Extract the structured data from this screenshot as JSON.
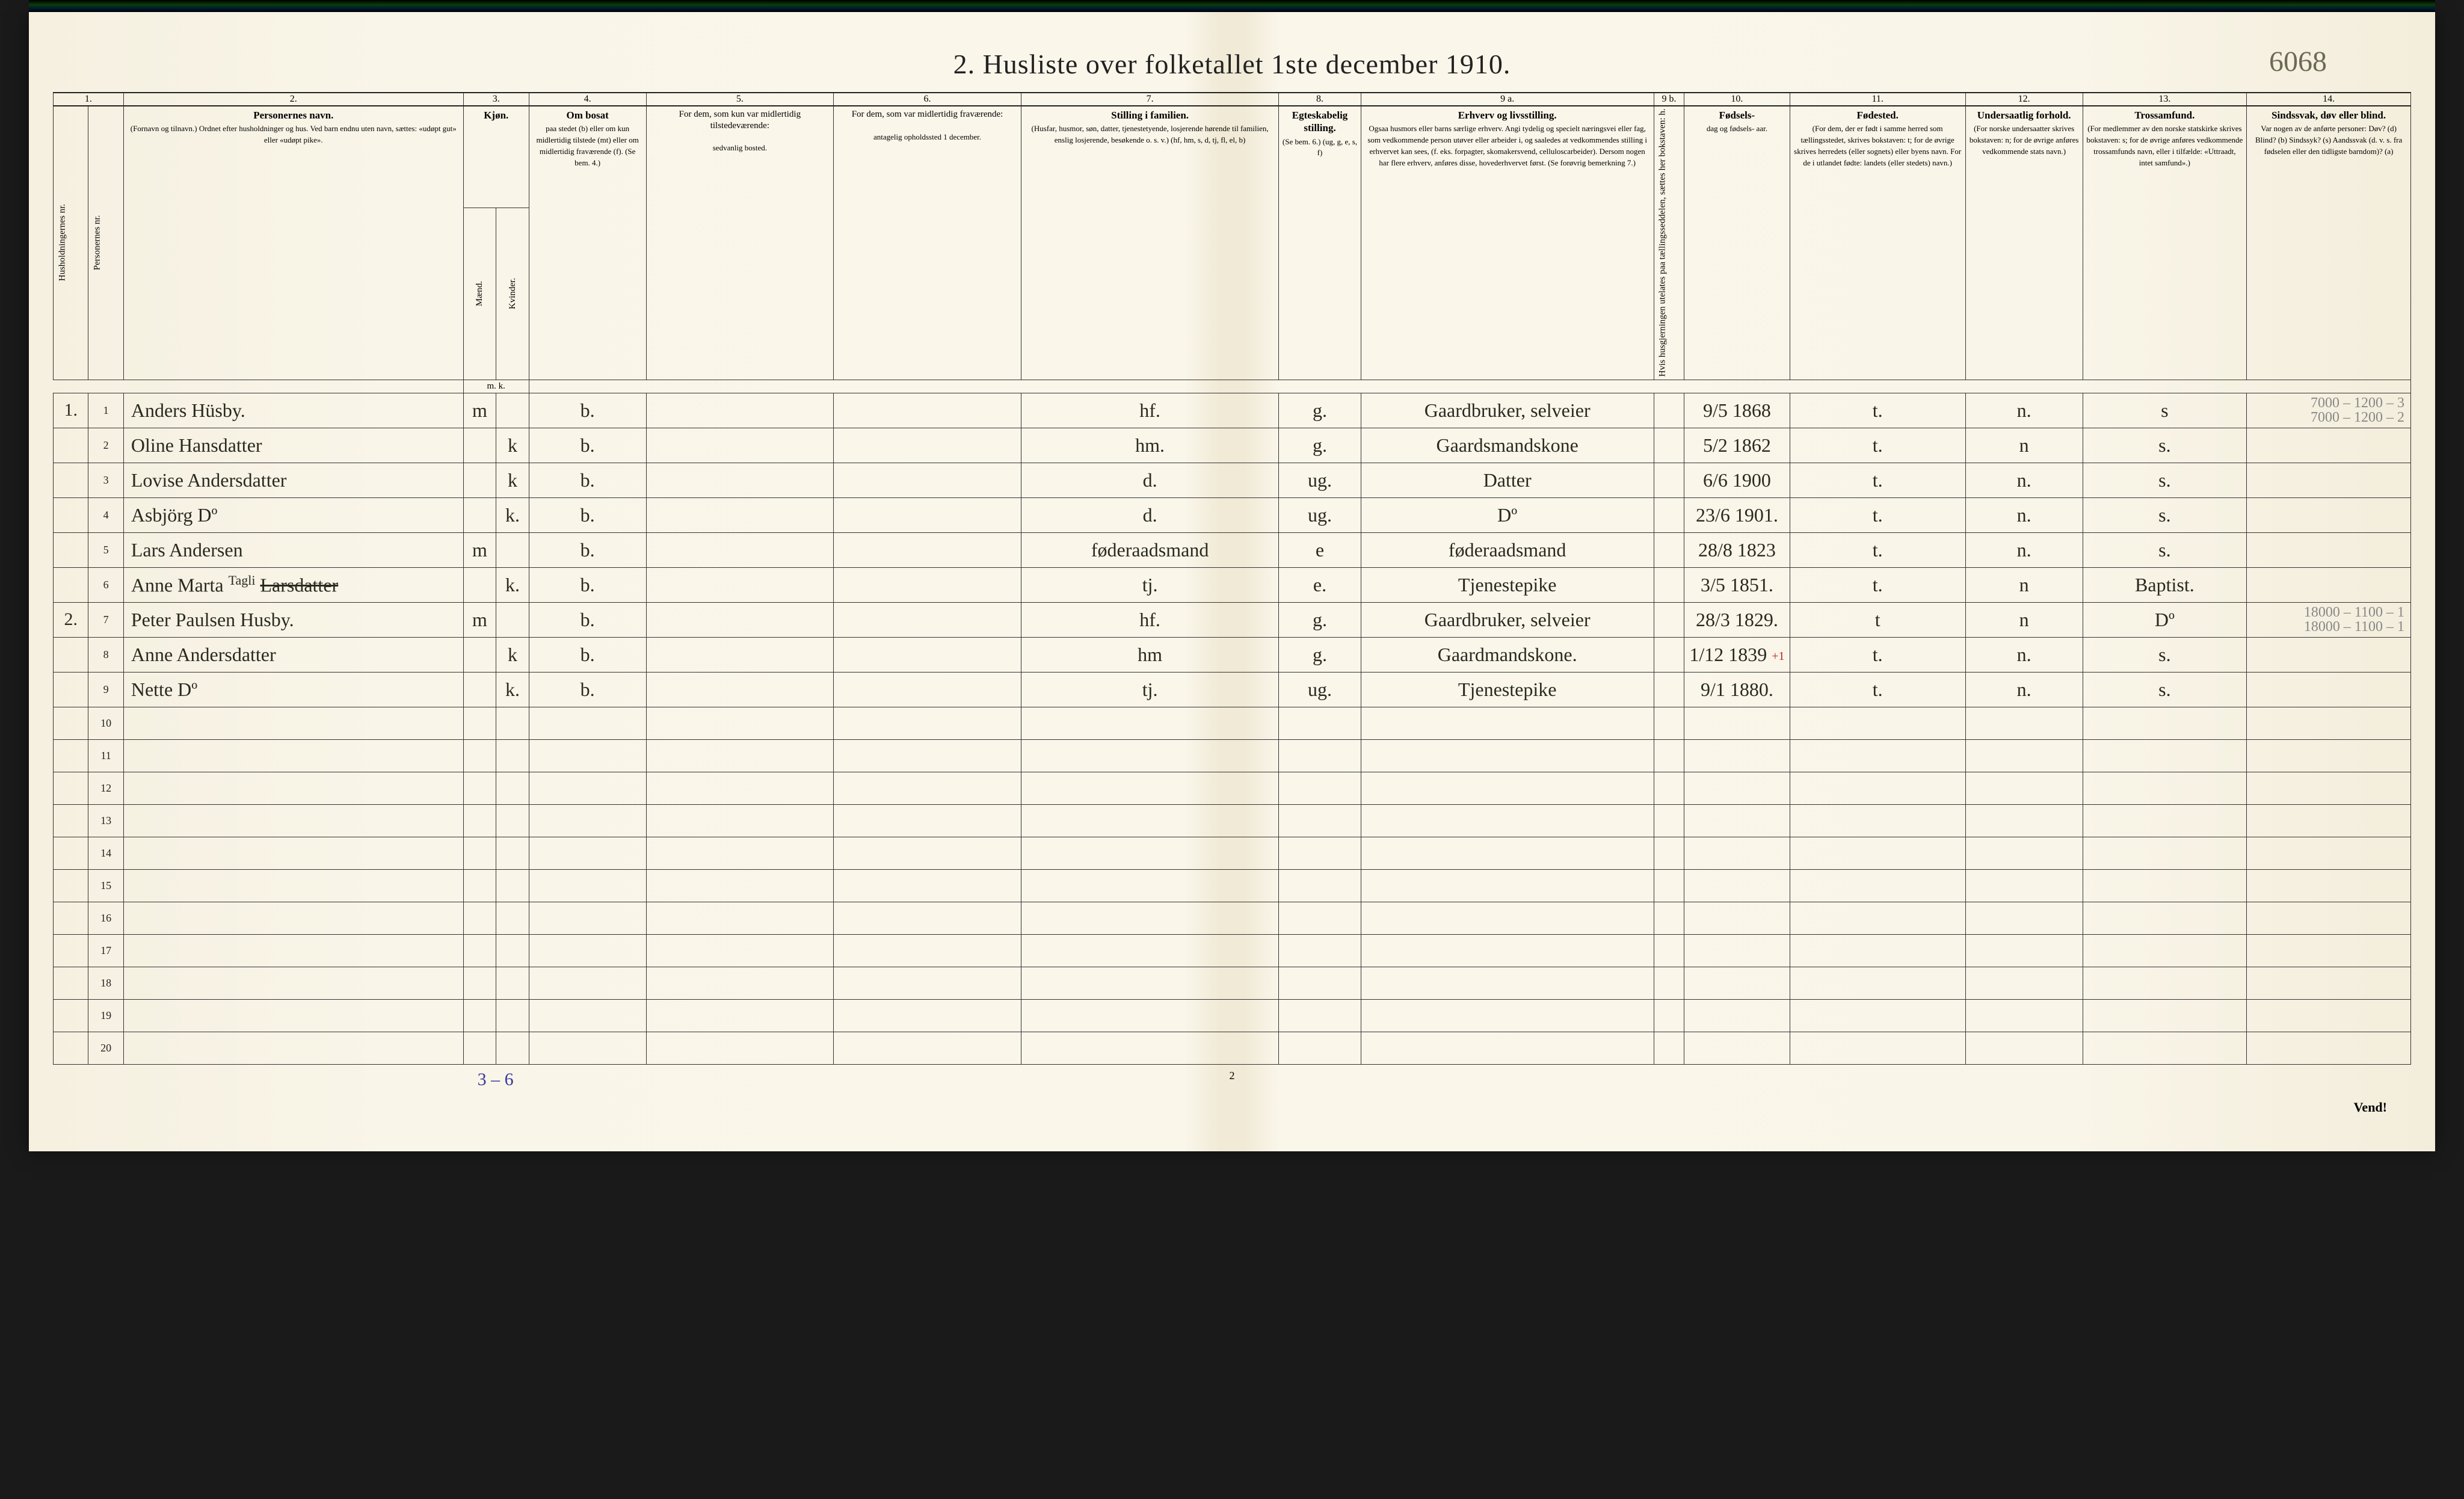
{
  "document": {
    "title": "2.  Husliste over folketallet 1ste december 1910.",
    "page_id_handwritten": "6068",
    "bottom_tally": "3 – 6",
    "bottom_page_number": "2",
    "bottom_right": "Vend!",
    "paper_bg_left": "#f5f0e0",
    "paper_bg_mid": "#faf6ea",
    "paper_fold": "#f0ead6",
    "ink_color": "#2a2a20",
    "pencil_color": "#888888",
    "rule_color": "#333333",
    "blue_ink": "#3a3a9a",
    "red_ink": "#c02020"
  },
  "column_numbers": [
    "1.",
    "2.",
    "3.",
    "4.",
    "5.",
    "6.",
    "7.",
    "8.",
    "9 a.",
    "9 b.",
    "10.",
    "11.",
    "12.",
    "13.",
    "14."
  ],
  "headers": {
    "c1a": "Husholdningernes nr.",
    "c1b": "Personernes nr.",
    "c2_title": "Personernes navn.",
    "c2_sub": "(Fornavn og tilnavn.)\nOrdnet efter husholdninger og hus.\nVed barn endnu uten navn, sættes: «udøpt gut» eller «udøpt pike».",
    "c3_title": "Kjøn.",
    "c3_sub": "Mænd.",
    "c3_sub2": "Kvinder.",
    "c3_foot": "m.  k.",
    "c4_title": "Om bosat",
    "c4_body": "paa stedet (b) eller om kun midlertidig tilstede (mt) eller om midlertidig fraværende (f).\n(Se bem. 4.)",
    "c5_title": "For dem, som kun var midlertidig tilstedeværende:",
    "c5_sub": "sedvanlig bosted.",
    "c6_title": "For dem, som var midlertidig fraværende:",
    "c6_sub": "antagelig opholdssted 1 december.",
    "c7_title": "Stilling i familien.",
    "c7_body": "(Husfar, husmor, søn, datter, tjenestetyende, losjerende hørende til familien, enslig losjerende, besøkende o. s. v.)\n(hf, hm, s, d, tj, fl, el, b)",
    "c8_title": "Egteskabelig stilling.",
    "c8_body": "(Se bem. 6.)\n(ug, g, e, s, f)",
    "c9a_title": "Erhverv og livsstilling.",
    "c9a_body": "Ogsaa husmors eller barns særlige erhverv. Angi tydelig og specielt næringsvei eller fag, som vedkommende person utøver eller arbeider i, og saaledes at vedkommendes stilling i erhvervet kan sees, (f. eks. forpagter, skomakersvend, celluloscarbeider). Dersom nogen har flere erhverv, anføres disse, hovederhvervet først.\n(Se forøvrig bemerkning 7.)",
    "c9b": "Hvis husgjerningen utelates paa tællingsseddelen, sættes her bokstaven: h.",
    "c10_title": "Fødsels-",
    "c10_body": "dag\nog\nfødsels-\naar.",
    "c11_title": "Fødested.",
    "c11_body": "(For dem, der er født i samme herred som tællingsstedet, skrives bokstaven: t; for de øvrige skrives herredets (eller sognets) eller byens navn. For de i utlandet fødte: landets (eller stedets) navn.)",
    "c12_title": "Undersaatlig forhold.",
    "c12_body": "(For norske undersaatter skrives bokstaven: n; for de øvrige anføres vedkommende stats navn.)",
    "c13_title": "Trossamfund.",
    "c13_body": "(For medlemmer av den norske statskirke skrives bokstaven: s; for de øvrige anføres vedkommende trossamfunds navn, eller i tilfælde: «Uttraadt, intet samfund».)",
    "c14_title": "Sindssvak, døv eller blind.",
    "c14_body": "Var nogen av de anførte personer:\nDøv?        (d)\nBlind?      (b)\nSindssyk?  (s)\nAandssvak (d. v. s. fra fødselen eller den tidligste barndom)?  (a)"
  },
  "rows": [
    {
      "hh": "1.",
      "pn": "1",
      "name": "Anders Hüsby.",
      "sex_m": "m",
      "sex_k": "",
      "res": "b.",
      "c5": "",
      "c6": "",
      "fam": "hf.",
      "mar": "g.",
      "occ": "Gaardbruker, selveier",
      "c9b": "",
      "birth": "9/5 1868",
      "bplace": "t.",
      "nat": "n.",
      "rel": "s",
      "c14": "7000 – 1200 – 3",
      "c14b": "7000 – 1200 – 2"
    },
    {
      "hh": "",
      "pn": "2",
      "name": "Oline Hansdatter",
      "sex_m": "",
      "sex_k": "k",
      "res": "b.",
      "c5": "",
      "c6": "",
      "fam": "hm.",
      "mar": "g.",
      "occ": "Gaardsmandskone",
      "c9b": "",
      "birth": "5/2 1862",
      "bplace": "t.",
      "nat": "n",
      "rel": "s.",
      "c14": ""
    },
    {
      "hh": "",
      "pn": "3",
      "name": "Lovise Andersdatter",
      "sex_m": "",
      "sex_k": "k",
      "res": "b.",
      "c5": "",
      "c6": "",
      "fam": "d.",
      "mar": "ug.",
      "occ": "Datter",
      "c9b": "",
      "birth": "6/6 1900",
      "bplace": "t.",
      "nat": "n.",
      "rel": "s.",
      "c14": ""
    },
    {
      "hh": "",
      "pn": "4",
      "name": "Asbjörg        Dº",
      "sex_m": "",
      "sex_k": "k.",
      "res": "b.",
      "c5": "",
      "c6": "",
      "fam": "d.",
      "mar": "ug.",
      "occ": "Dº",
      "c9b": "",
      "birth": "23/6 1901.",
      "bplace": "t.",
      "nat": "n.",
      "rel": "s.",
      "c14": ""
    },
    {
      "hh": "",
      "pn": "5",
      "name": "Lars Andersen",
      "sex_m": "m",
      "sex_k": "",
      "res": "b.",
      "c5": "",
      "c6": "",
      "fam": "føderaadsmand",
      "mar": "e",
      "occ": "føderaadsmand",
      "c9b": "",
      "birth": "28/8 1823",
      "bplace": "t.",
      "nat": "n.",
      "rel": "s.",
      "c14": ""
    },
    {
      "hh": "",
      "pn": "6",
      "name": "Anne Marta ",
      "name_strike": "Larsdatter",
      "name_insert": "Tagli",
      "sex_m": "",
      "sex_k": "k.",
      "res": "b.",
      "c5": "",
      "c6": "",
      "fam": "tj.",
      "mar": "e.",
      "occ": "Tjenestepike",
      "c9b": "",
      "birth": "3/5 1851.",
      "bplace": "t.",
      "nat": "n",
      "rel": "Baptist.",
      "c14": ""
    },
    {
      "hh": "2.",
      "pn": "7",
      "name": "Peter Paulsen Husby.",
      "sex_m": "m",
      "sex_k": "",
      "res": "b.",
      "c5": "",
      "c6": "",
      "fam": "hf.",
      "mar": "g.",
      "occ": "Gaardbruker, selveier",
      "c9b": "",
      "birth": "28/3 1829.",
      "bplace": "t",
      "nat": "n",
      "rel": "Dº",
      "c14": "18000 – 1100 – 1",
      "c14b": "18000 – 1100 – 1"
    },
    {
      "hh": "",
      "pn": "8",
      "name": "Anne Andersdatter",
      "sex_m": "",
      "sex_k": "k",
      "res": "b.",
      "c5": "",
      "c6": "",
      "fam": "hm",
      "mar": "g.",
      "occ": "Gaardmandskone.",
      "c9b": "",
      "birth": "1/12 1839",
      "birth_plus": "+1",
      "bplace": "t.",
      "nat": "n.",
      "rel": "s.",
      "c14": ""
    },
    {
      "hh": "",
      "pn": "9",
      "name": "Nette        Dº",
      "sex_m": "",
      "sex_k": "k.",
      "res": "b.",
      "c5": "",
      "c6": "",
      "fam": "tj.",
      "mar": "ug.",
      "occ": "Tjenestepike",
      "c9b": "",
      "birth": "9/1 1880.",
      "bplace": "t.",
      "nat": "n.",
      "rel": "s.",
      "c14": ""
    }
  ],
  "empty_row_labels": [
    "10",
    "11",
    "12",
    "13",
    "14",
    "15",
    "16",
    "17",
    "18",
    "19",
    "20"
  ]
}
